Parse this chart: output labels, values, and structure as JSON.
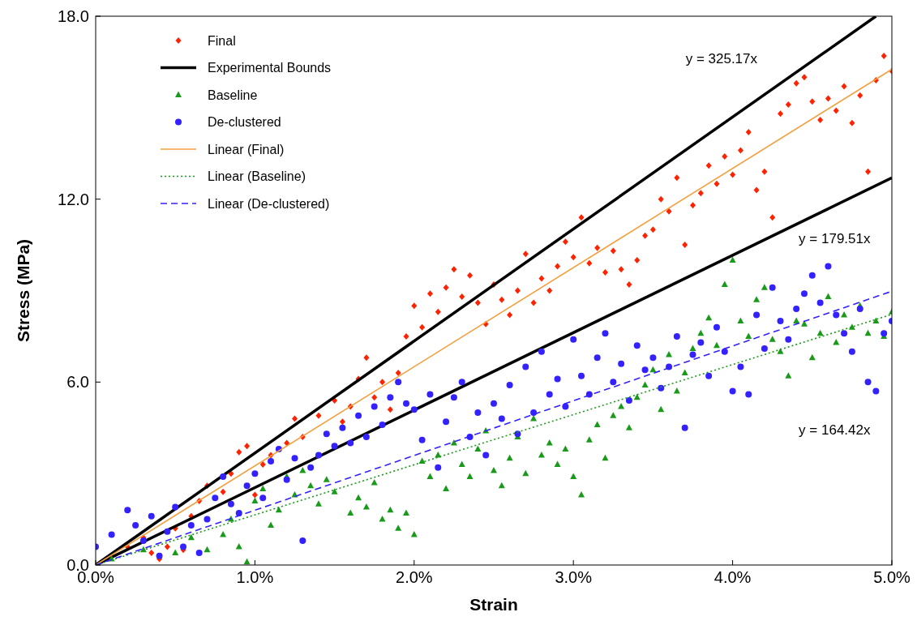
{
  "chart_data": {
    "type": "scatter",
    "xlabel": "Strain",
    "ylabel": "Stress (MPa)",
    "xlim": [
      0,
      5
    ],
    "ylim": [
      0,
      18
    ],
    "xticks": [
      {
        "value": 0,
        "label": "0.0%"
      },
      {
        "value": 1,
        "label": "1.0%"
      },
      {
        "value": 2,
        "label": "2.0%"
      },
      {
        "value": 3,
        "label": "3.0%"
      },
      {
        "value": 4,
        "label": "4.0%"
      },
      {
        "value": 5,
        "label": "5.0%"
      }
    ],
    "yticks": [
      {
        "value": 0,
        "label": "0.0"
      },
      {
        "value": 6,
        "label": "6.0"
      },
      {
        "value": 12,
        "label": "12.0"
      },
      {
        "value": 18,
        "label": "18.0"
      }
    ],
    "grid": false,
    "legend": "top left",
    "annotations": [
      "y = 325.17x",
      "y = 179.51x",
      "y = 164.42x"
    ],
    "series": [
      {
        "name": "Final",
        "marker": "diamond",
        "color": "#ff2200",
        "x": [
          0.1,
          0.2,
          0.3,
          0.35,
          0.4,
          0.45,
          0.5,
          0.55,
          0.6,
          0.65,
          0.7,
          0.8,
          0.85,
          0.9,
          0.95,
          1.0,
          1.05,
          1.1,
          1.2,
          1.25,
          1.3,
          1.4,
          1.5,
          1.55,
          1.6,
          1.65,
          1.7,
          1.75,
          1.8,
          1.85,
          1.9,
          1.95,
          2.0,
          2.05,
          2.1,
          2.15,
          2.2,
          2.25,
          2.3,
          2.35,
          2.4,
          2.45,
          2.5,
          2.55,
          2.6,
          2.65,
          2.7,
          2.75,
          2.8,
          2.85,
          2.9,
          2.95,
          3.0,
          3.05,
          3.1,
          3.15,
          3.2,
          3.25,
          3.3,
          3.35,
          3.4,
          3.45,
          3.5,
          3.55,
          3.6,
          3.65,
          3.7,
          3.75,
          3.8,
          3.85,
          3.9,
          3.95,
          4.0,
          4.05,
          4.1,
          4.15,
          4.2,
          4.25,
          4.3,
          4.35,
          4.4,
          4.45,
          4.5,
          4.55,
          4.6,
          4.65,
          4.7,
          4.75,
          4.8,
          4.85,
          4.9,
          4.95,
          5.0
        ],
        "values": [
          0.3,
          0.6,
          0.9,
          0.4,
          0.2,
          0.6,
          1.2,
          0.5,
          1.6,
          2.1,
          2.6,
          2.4,
          3.0,
          3.7,
          3.9,
          2.3,
          3.3,
          3.6,
          4.0,
          4.8,
          4.2,
          4.9,
          5.4,
          4.7,
          5.2,
          6.1,
          6.8,
          5.5,
          6.0,
          5.1,
          6.3,
          7.5,
          8.5,
          7.8,
          8.9,
          8.3,
          9.1,
          9.7,
          8.8,
          9.5,
          8.6,
          7.9,
          9.2,
          8.7,
          8.2,
          9.0,
          10.2,
          8.6,
          9.4,
          9.0,
          9.8,
          10.6,
          10.1,
          11.4,
          9.9,
          10.4,
          9.6,
          10.3,
          9.7,
          9.2,
          10.0,
          10.8,
          11.0,
          12.0,
          11.6,
          12.7,
          10.5,
          11.8,
          12.2,
          13.1,
          12.5,
          13.4,
          12.8,
          13.6,
          14.2,
          12.3,
          12.9,
          11.4,
          14.8,
          15.1,
          15.8,
          16.0,
          15.2,
          14.6,
          15.3,
          14.9,
          15.7,
          14.5,
          15.4,
          12.9,
          15.9,
          16.7,
          16.2
        ]
      },
      {
        "name": "Experimental Bounds",
        "type": "line",
        "color": "#000000",
        "line_style": "solid",
        "x": [
          0,
          4.9
        ],
        "values": [
          0,
          18
        ]
      },
      {
        "type": "line",
        "color": "#000000",
        "line_style": "solid",
        "x": [
          0,
          5
        ],
        "values": [
          0,
          12.7
        ]
      },
      {
        "name": "Baseline",
        "marker": "triangle",
        "color": "#1a9a1a",
        "x": [
          0.1,
          0.3,
          0.5,
          0.6,
          0.7,
          0.8,
          0.85,
          0.9,
          0.95,
          1.0,
          1.05,
          1.1,
          1.15,
          1.2,
          1.25,
          1.3,
          1.35,
          1.4,
          1.45,
          1.5,
          1.6,
          1.65,
          1.7,
          1.75,
          1.8,
          1.85,
          1.9,
          1.95,
          2.0,
          2.05,
          2.1,
          2.15,
          2.2,
          2.25,
          2.3,
          2.35,
          2.4,
          2.45,
          2.5,
          2.55,
          2.6,
          2.65,
          2.7,
          2.75,
          2.8,
          2.85,
          2.9,
          2.95,
          3.0,
          3.05,
          3.1,
          3.15,
          3.2,
          3.25,
          3.3,
          3.35,
          3.4,
          3.45,
          3.5,
          3.55,
          3.6,
          3.65,
          3.7,
          3.75,
          3.8,
          3.85,
          3.9,
          3.95,
          4.0,
          4.05,
          4.1,
          4.15,
          4.2,
          4.25,
          4.3,
          4.35,
          4.4,
          4.45,
          4.5,
          4.55,
          4.6,
          4.65,
          4.7,
          4.75,
          4.8,
          4.85,
          4.9,
          4.95,
          5.0
        ],
        "values": [
          0.2,
          0.5,
          0.4,
          0.9,
          0.5,
          1.0,
          1.5,
          0.6,
          0.1,
          2.1,
          2.5,
          1.3,
          1.8,
          2.9,
          2.3,
          3.1,
          2.6,
          2.0,
          2.8,
          2.4,
          1.7,
          2.2,
          1.9,
          2.7,
          1.5,
          1.8,
          1.2,
          1.7,
          1.0,
          3.4,
          2.9,
          3.6,
          2.5,
          4.0,
          3.3,
          2.9,
          3.8,
          4.4,
          3.1,
          2.6,
          3.5,
          4.2,
          3.0,
          4.8,
          3.6,
          4.0,
          3.3,
          3.8,
          2.9,
          2.3,
          4.1,
          4.6,
          3.5,
          4.9,
          5.2,
          4.5,
          5.5,
          5.9,
          6.4,
          5.1,
          6.9,
          5.7,
          6.3,
          7.1,
          7.6,
          8.1,
          7.2,
          9.2,
          10.0,
          8.0,
          7.5,
          8.7,
          9.1,
          7.4,
          7.0,
          6.2,
          8.0,
          7.9,
          6.8,
          7.6,
          8.8,
          7.3,
          8.2,
          7.8,
          8.5,
          7.6,
          8.0,
          7.5,
          8.3
        ]
      },
      {
        "name": "De-clustered",
        "marker": "circle",
        "color": "#3322ff",
        "x": [
          0.0,
          0.1,
          0.2,
          0.25,
          0.3,
          0.35,
          0.4,
          0.45,
          0.5,
          0.55,
          0.6,
          0.65,
          0.7,
          0.75,
          0.8,
          0.85,
          0.9,
          0.95,
          1.0,
          1.05,
          1.1,
          1.15,
          1.2,
          1.25,
          1.3,
          1.35,
          1.4,
          1.45,
          1.5,
          1.55,
          1.6,
          1.65,
          1.7,
          1.75,
          1.8,
          1.85,
          1.9,
          1.95,
          2.0,
          2.05,
          2.1,
          2.15,
          2.2,
          2.25,
          2.3,
          2.35,
          2.4,
          2.45,
          2.5,
          2.55,
          2.6,
          2.65,
          2.7,
          2.75,
          2.8,
          2.85,
          2.9,
          2.95,
          3.0,
          3.05,
          3.1,
          3.15,
          3.2,
          3.25,
          3.3,
          3.35,
          3.4,
          3.45,
          3.5,
          3.55,
          3.6,
          3.65,
          3.7,
          3.75,
          3.8,
          3.85,
          3.9,
          3.95,
          4.0,
          4.05,
          4.1,
          4.15,
          4.2,
          4.25,
          4.3,
          4.35,
          4.4,
          4.45,
          4.5,
          4.55,
          4.6,
          4.65,
          4.7,
          4.75,
          4.8,
          4.85,
          4.9,
          4.95,
          5.0
        ],
        "values": [
          0.6,
          1.0,
          1.8,
          1.3,
          0.8,
          1.6,
          0.3,
          1.1,
          1.9,
          0.6,
          1.3,
          0.4,
          1.5,
          2.2,
          2.9,
          2.0,
          1.7,
          2.6,
          3.0,
          2.2,
          3.4,
          3.8,
          2.8,
          3.5,
          0.8,
          3.2,
          3.6,
          4.3,
          3.9,
          4.5,
          4.0,
          4.9,
          4.2,
          5.2,
          4.6,
          5.5,
          6.0,
          5.3,
          5.1,
          4.1,
          5.6,
          3.2,
          4.7,
          5.5,
          6.0,
          4.2,
          5.0,
          3.6,
          5.3,
          4.8,
          5.9,
          4.3,
          6.5,
          5.0,
          7.0,
          5.6,
          6.1,
          5.2,
          7.4,
          6.2,
          5.6,
          6.8,
          7.6,
          6.0,
          6.6,
          5.4,
          7.2,
          6.4,
          6.8,
          5.8,
          6.5,
          7.5,
          4.5,
          6.9,
          7.3,
          6.2,
          7.8,
          7.0,
          5.7,
          6.5,
          5.6,
          8.2,
          7.1,
          9.1,
          8.0,
          7.4,
          8.4,
          8.9,
          9.5,
          8.6,
          9.8,
          8.2,
          7.6,
          7.0,
          8.4,
          6.0,
          5.7,
          7.6,
          8.0
        ]
      },
      {
        "name": "Linear (Final)",
        "type": "line",
        "color": "#f5a040",
        "line_style": "solid",
        "x": [
          0,
          5
        ],
        "values": [
          0,
          16.26
        ]
      },
      {
        "name": "Linear (Baseline)",
        "type": "line",
        "color": "#1a9a1a",
        "line_style": "dotted",
        "x": [
          0,
          5
        ],
        "values": [
          0,
          8.22
        ]
      },
      {
        "name": "Linear (De-clustered)",
        "type": "line",
        "color": "#3322ff",
        "line_style": "dashed",
        "x": [
          0,
          5
        ],
        "values": [
          0,
          8.98
        ]
      }
    ]
  }
}
